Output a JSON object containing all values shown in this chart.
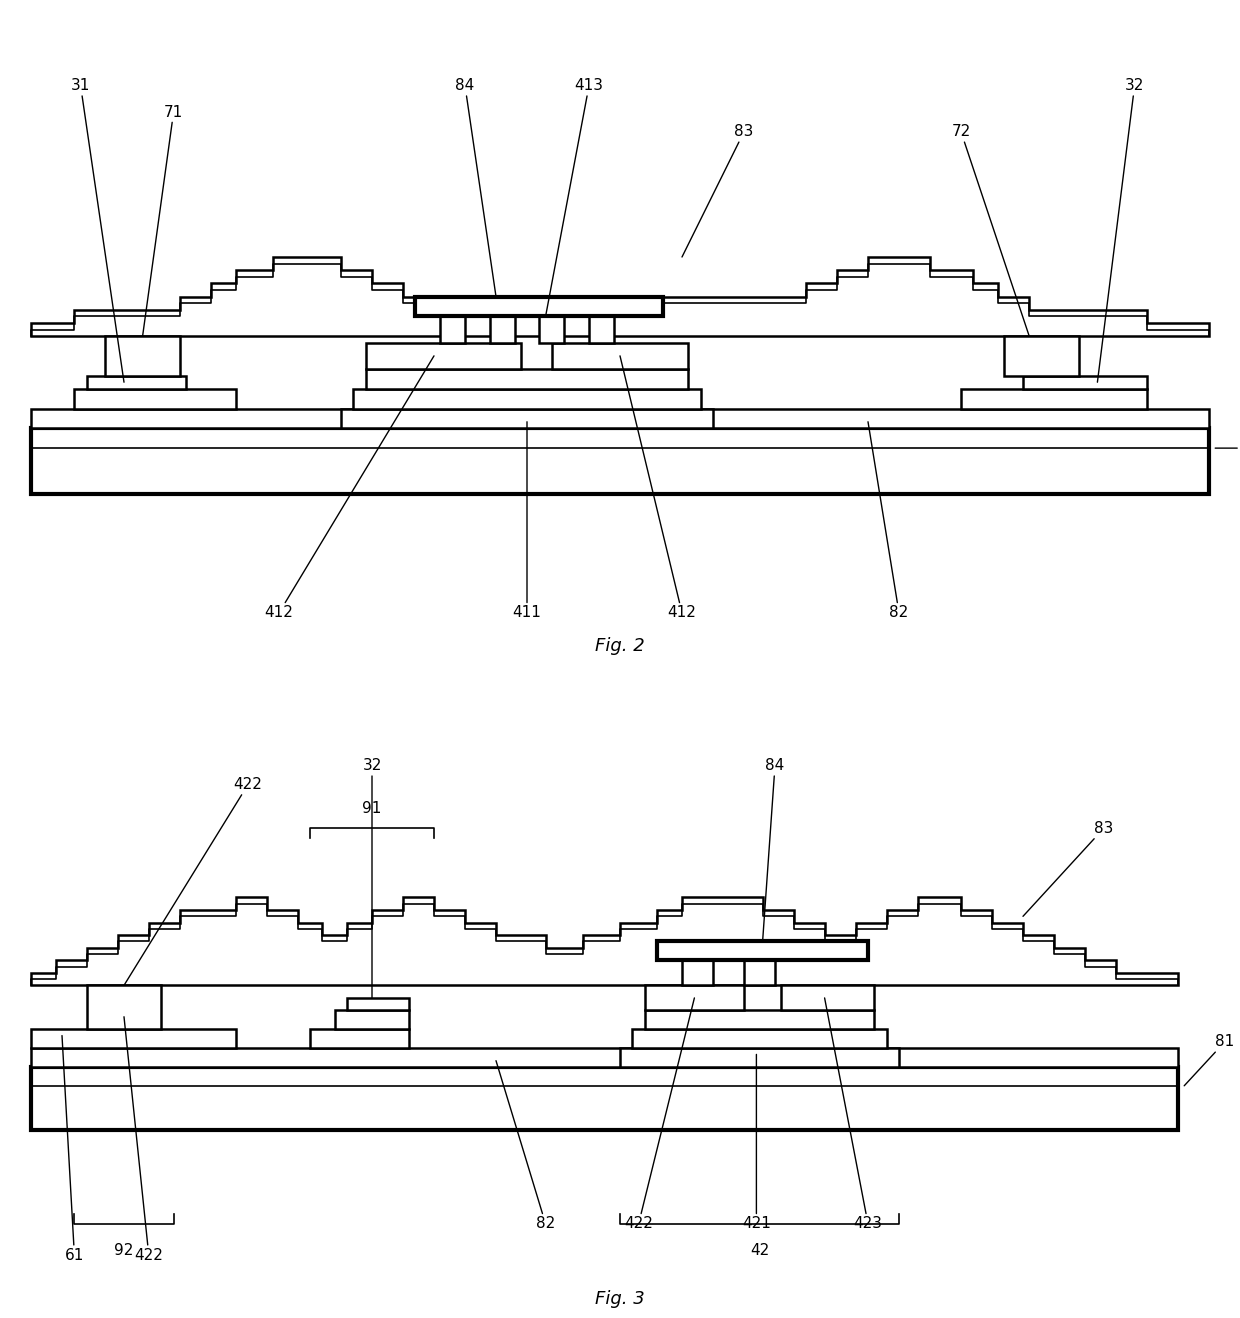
{
  "background_color": "#ffffff",
  "line_color": "#000000",
  "lw_thin": 1.2,
  "lw_medium": 1.8,
  "lw_thick": 3.0,
  "fig2_caption": "Fig. 2",
  "fig3_caption": "Fig. 3",
  "font_size_label": 11,
  "font_size_caption": 13
}
